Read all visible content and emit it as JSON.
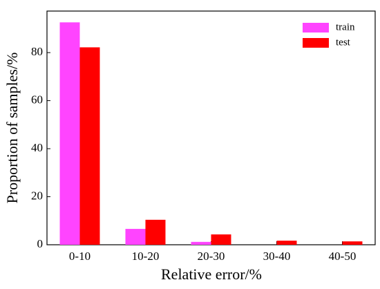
{
  "chart_data": {
    "type": "bar",
    "x_label": "Relative error/%",
    "y_label": "Proportion of samples/%",
    "categories": [
      "0-10",
      "10-20",
      "20-30",
      "30-40",
      "40-50"
    ],
    "series": [
      {
        "name": "train",
        "color": "#ff44ff",
        "values": [
          92.6,
          6.6,
          1.2,
          0,
          0
        ]
      },
      {
        "name": "test",
        "color": "#ff0000",
        "values": [
          82.2,
          10.4,
          4.3,
          1.7,
          1.4
        ]
      }
    ],
    "ylim": [
      0,
      97.3
    ],
    "yticks": [
      0,
      20,
      40,
      60,
      80
    ],
    "legend": "upper right"
  }
}
